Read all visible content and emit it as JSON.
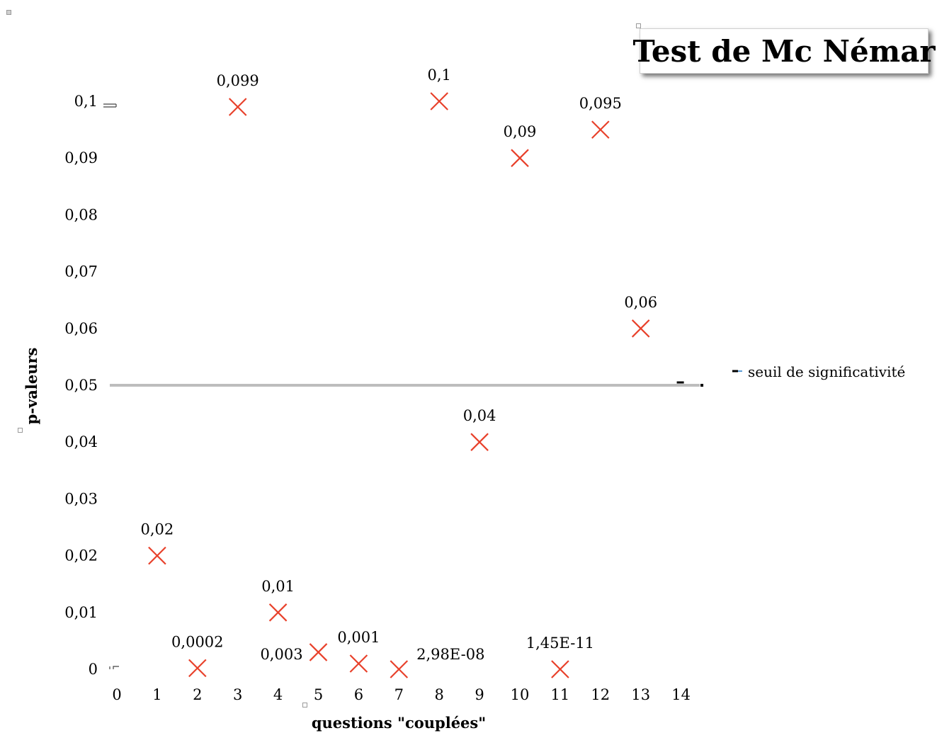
{
  "chart_data": {
    "type": "scatter",
    "title": "Test de Mc Némar",
    "xlabel": "questions \"couplées\"",
    "ylabel": "p-valeurs",
    "xlim": [
      0,
      14
    ],
    "ylim": [
      0,
      0.1
    ],
    "x_ticks": [
      "0",
      "1",
      "2",
      "3",
      "4",
      "5",
      "6",
      "7",
      "8",
      "9",
      "10",
      "11",
      "12",
      "13",
      "14"
    ],
    "y_ticks": [
      "0",
      "0,01",
      "0,02",
      "0,03",
      "0,04",
      "0,05",
      "0,06",
      "0,07",
      "0,08",
      "0,09",
      "0,1"
    ],
    "grid": false,
    "marker": "x",
    "marker_color": "#e8402a",
    "points": [
      {
        "x": 1,
        "y": 0.02,
        "label": "0,02"
      },
      {
        "x": 2,
        "y": 0.0002,
        "label": "0,0002"
      },
      {
        "x": 3,
        "y": 0.099,
        "label": "0,099"
      },
      {
        "x": 4,
        "y": 0.01,
        "label": "0,01"
      },
      {
        "x": 5,
        "y": 0.003,
        "label": "0,003"
      },
      {
        "x": 6,
        "y": 0.001,
        "label": "0,001"
      },
      {
        "x": 7,
        "y": 2.98e-08,
        "label": "2,98E-08"
      },
      {
        "x": 8,
        "y": 0.1,
        "label": "0,1"
      },
      {
        "x": 9,
        "y": 0.04,
        "label": "0,04"
      },
      {
        "x": 10,
        "y": 0.09,
        "label": "0,09"
      },
      {
        "x": 11,
        "y": 1.45e-11,
        "label": "1,45E-11"
      },
      {
        "x": 12,
        "y": 0.095,
        "label": "0,095"
      },
      {
        "x": 13,
        "y": 0.06,
        "label": "0,06"
      }
    ],
    "threshold": {
      "y": 0.05,
      "x_range": [
        0,
        14.5
      ],
      "name": "seuil de significativité",
      "color": "#bdbdbd"
    },
    "legend_position": "right"
  }
}
